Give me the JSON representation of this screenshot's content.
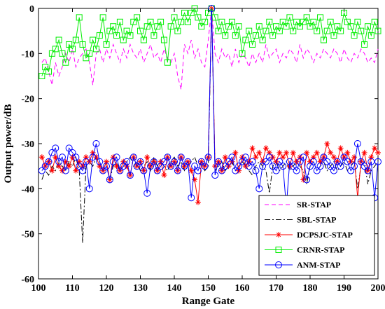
{
  "chart_data": {
    "type": "line",
    "xlabel": "Range Gate",
    "ylabel": "Output power/dB",
    "xlim": [
      100,
      200
    ],
    "ylim": [
      -60,
      0
    ],
    "xticks": [
      100,
      110,
      120,
      130,
      140,
      150,
      160,
      170,
      180,
      190,
      200
    ],
    "yticks": [
      0,
      -10,
      -20,
      -30,
      -40,
      -50,
      -60
    ],
    "grid": false,
    "legend_position": "bottom-right",
    "x": [
      101,
      102,
      103,
      104,
      105,
      106,
      107,
      108,
      109,
      110,
      111,
      112,
      113,
      114,
      115,
      116,
      117,
      118,
      119,
      120,
      121,
      122,
      123,
      124,
      125,
      126,
      127,
      128,
      129,
      130,
      131,
      132,
      133,
      134,
      135,
      136,
      137,
      138,
      139,
      140,
      141,
      142,
      143,
      144,
      145,
      146,
      147,
      148,
      149,
      150,
      151,
      152,
      153,
      154,
      155,
      156,
      157,
      158,
      159,
      160,
      161,
      162,
      163,
      164,
      165,
      166,
      167,
      168,
      169,
      170,
      171,
      172,
      173,
      174,
      175,
      176,
      177,
      178,
      179,
      180,
      181,
      182,
      183,
      184,
      185,
      186,
      187,
      188,
      189,
      190,
      191,
      192,
      193,
      194,
      195,
      196,
      197,
      198,
      199,
      200
    ],
    "series": [
      {
        "name": "SR-STAP",
        "color": "#ff00ff",
        "dash": "6,4",
        "marker": "none",
        "values": [
          -12,
          -11,
          -14,
          -17,
          -12,
          -15,
          -13,
          -10,
          -12,
          -9,
          -13,
          -11,
          -10,
          -9,
          -12,
          -17,
          -10,
          -9,
          -12,
          -9,
          -11,
          -8,
          -10,
          -12,
          -9,
          -11,
          -8,
          -10,
          -11,
          -9,
          -12,
          -10,
          -8,
          -11,
          -10,
          -12,
          -9,
          -11,
          -12,
          -10,
          -15,
          -18,
          -8,
          -10,
          -7,
          -11,
          -9,
          -12,
          -13,
          -7,
          0,
          -10,
          -12,
          -9,
          -11,
          -10,
          -13,
          -9,
          -12,
          -10,
          -11,
          -13,
          -10,
          -12,
          -10,
          -12,
          -8,
          -11,
          -10,
          -9,
          -12,
          -10,
          -11,
          -9,
          -10,
          -12,
          -8,
          -11,
          -9,
          -10,
          -12,
          -10,
          -11,
          -9,
          -10,
          -11,
          -9,
          -10,
          -12,
          -9,
          -11,
          -12,
          -10,
          -11,
          -9,
          -10,
          -12,
          -11,
          -12,
          -9
        ]
      },
      {
        "name": "SBL-STAP",
        "color": "#000000",
        "dash": "8,3,2,3",
        "marker": "none",
        "values": [
          -38,
          -36,
          -37,
          -35,
          -36,
          -34,
          -35,
          -36,
          -34,
          -35,
          -33,
          -36,
          -52,
          -35,
          -34,
          -35,
          -33,
          -34,
          -36,
          -34,
          -38,
          -35,
          -34,
          -36,
          -35,
          -34,
          -33,
          -35,
          -34,
          -36,
          -35,
          -34,
          -36,
          -33,
          -35,
          -34,
          -35,
          -36,
          -34,
          -33,
          -35,
          -34,
          -36,
          -35,
          -34,
          -33,
          -35,
          -34,
          -36,
          -35,
          0,
          -36,
          -35,
          -34,
          -36,
          -35,
          -34,
          -36,
          -35,
          -34,
          -35,
          -36,
          -37,
          -35,
          -34,
          -35,
          -36,
          -41,
          -35,
          -34,
          -36,
          -35,
          -34,
          -36,
          -35,
          -34,
          -35,
          -36,
          -39,
          -35,
          -34,
          -36,
          -35,
          -34,
          -36,
          -35,
          -34,
          -36,
          -35,
          -34,
          -36,
          -35,
          -34,
          -40,
          -35,
          -34,
          -39,
          -36,
          -35,
          -34
        ]
      },
      {
        "name": "DCPSJC-STAP",
        "color": "#ff0000",
        "dash": "none",
        "marker": "star",
        "values": [
          -33,
          -35,
          -34,
          -36,
          -33,
          -35,
          -36,
          -34,
          -35,
          -33,
          -36,
          -34,
          -35,
          -33,
          -34,
          -32,
          -33,
          -35,
          -36,
          -34,
          -38,
          -33,
          -35,
          -36,
          -34,
          -35,
          -37,
          -33,
          -35,
          -34,
          -36,
          -33,
          -35,
          -34,
          -36,
          -34,
          -37,
          -33,
          -35,
          -34,
          -36,
          -33,
          -35,
          -34,
          -36,
          -38,
          -43,
          -34,
          -35,
          -33,
          0,
          -35,
          -34,
          -36,
          -33,
          -35,
          -34,
          -32,
          -36,
          -33,
          -35,
          -34,
          -31,
          -33,
          -32,
          -34,
          -31,
          -32,
          -33,
          -34,
          -32,
          -33,
          -32,
          -35,
          -32,
          -34,
          -33,
          -38,
          -32,
          -34,
          -33,
          -32,
          -34,
          -33,
          -30,
          -32,
          -33,
          -34,
          -31,
          -33,
          -32,
          -34,
          -33,
          -42,
          -34,
          -32,
          -36,
          -33,
          -31,
          -32
        ]
      },
      {
        "name": "CRNR-STAP",
        "color": "#00ee00",
        "dash": "none",
        "marker": "square",
        "values": [
          -15,
          -13,
          -14,
          -10,
          -9,
          -7,
          -10,
          -12,
          -8,
          -9,
          -7,
          -2,
          -8,
          -11,
          -10,
          -7,
          -9,
          -6,
          -2,
          -8,
          -5,
          -4,
          -6,
          -3,
          -7,
          -5,
          -6,
          -3,
          -2,
          -5,
          -7,
          -4,
          -3,
          -6,
          -4,
          -3,
          -7,
          -12,
          -4,
          -2,
          -5,
          -3,
          -1,
          -3,
          -1,
          0,
          -2,
          -4,
          -3,
          -1,
          0,
          -2,
          -5,
          -3,
          -6,
          -4,
          -3,
          -6,
          -4,
          -10,
          -7,
          -5,
          -8,
          -6,
          -4,
          -7,
          -5,
          -3,
          -6,
          -4,
          -5,
          -3,
          -4,
          -2,
          -5,
          -3,
          -4,
          -3,
          -2,
          -4,
          -3,
          -5,
          -2,
          -7,
          -5,
          -3,
          -6,
          -4,
          -5,
          -1,
          -3,
          -4,
          -6,
          -3,
          -5,
          -8,
          -4,
          -6,
          -3,
          -5
        ]
      },
      {
        "name": "ANM-STAP",
        "color": "#0000ff",
        "dash": "none",
        "marker": "circle",
        "values": [
          -36,
          -35,
          -34,
          -32,
          -31,
          -34,
          -33,
          -36,
          -31,
          -32,
          -33,
          -35,
          -36,
          -34,
          -40,
          -33,
          -30,
          -34,
          -36,
          -35,
          -38,
          -34,
          -33,
          -36,
          -35,
          -34,
          -37,
          -33,
          -35,
          -34,
          -36,
          -41,
          -35,
          -34,
          -36,
          -35,
          -34,
          -33,
          -35,
          -34,
          -36,
          -33,
          -35,
          -34,
          -42,
          -35,
          -36,
          -34,
          -35,
          -33,
          0,
          -37,
          -34,
          -36,
          -35,
          -34,
          -33,
          -36,
          -35,
          -34,
          -33,
          -35,
          -34,
          -36,
          -40,
          -35,
          -34,
          -33,
          -35,
          -36,
          -34,
          -35,
          -44,
          -34,
          -35,
          -36,
          -34,
          -33,
          -38,
          -35,
          -34,
          -36,
          -35,
          -33,
          -34,
          -35,
          -36,
          -34,
          -35,
          -33,
          -34,
          -36,
          -35,
          -30,
          -34,
          -35,
          -36,
          -34,
          -42,
          -34
        ]
      }
    ]
  }
}
